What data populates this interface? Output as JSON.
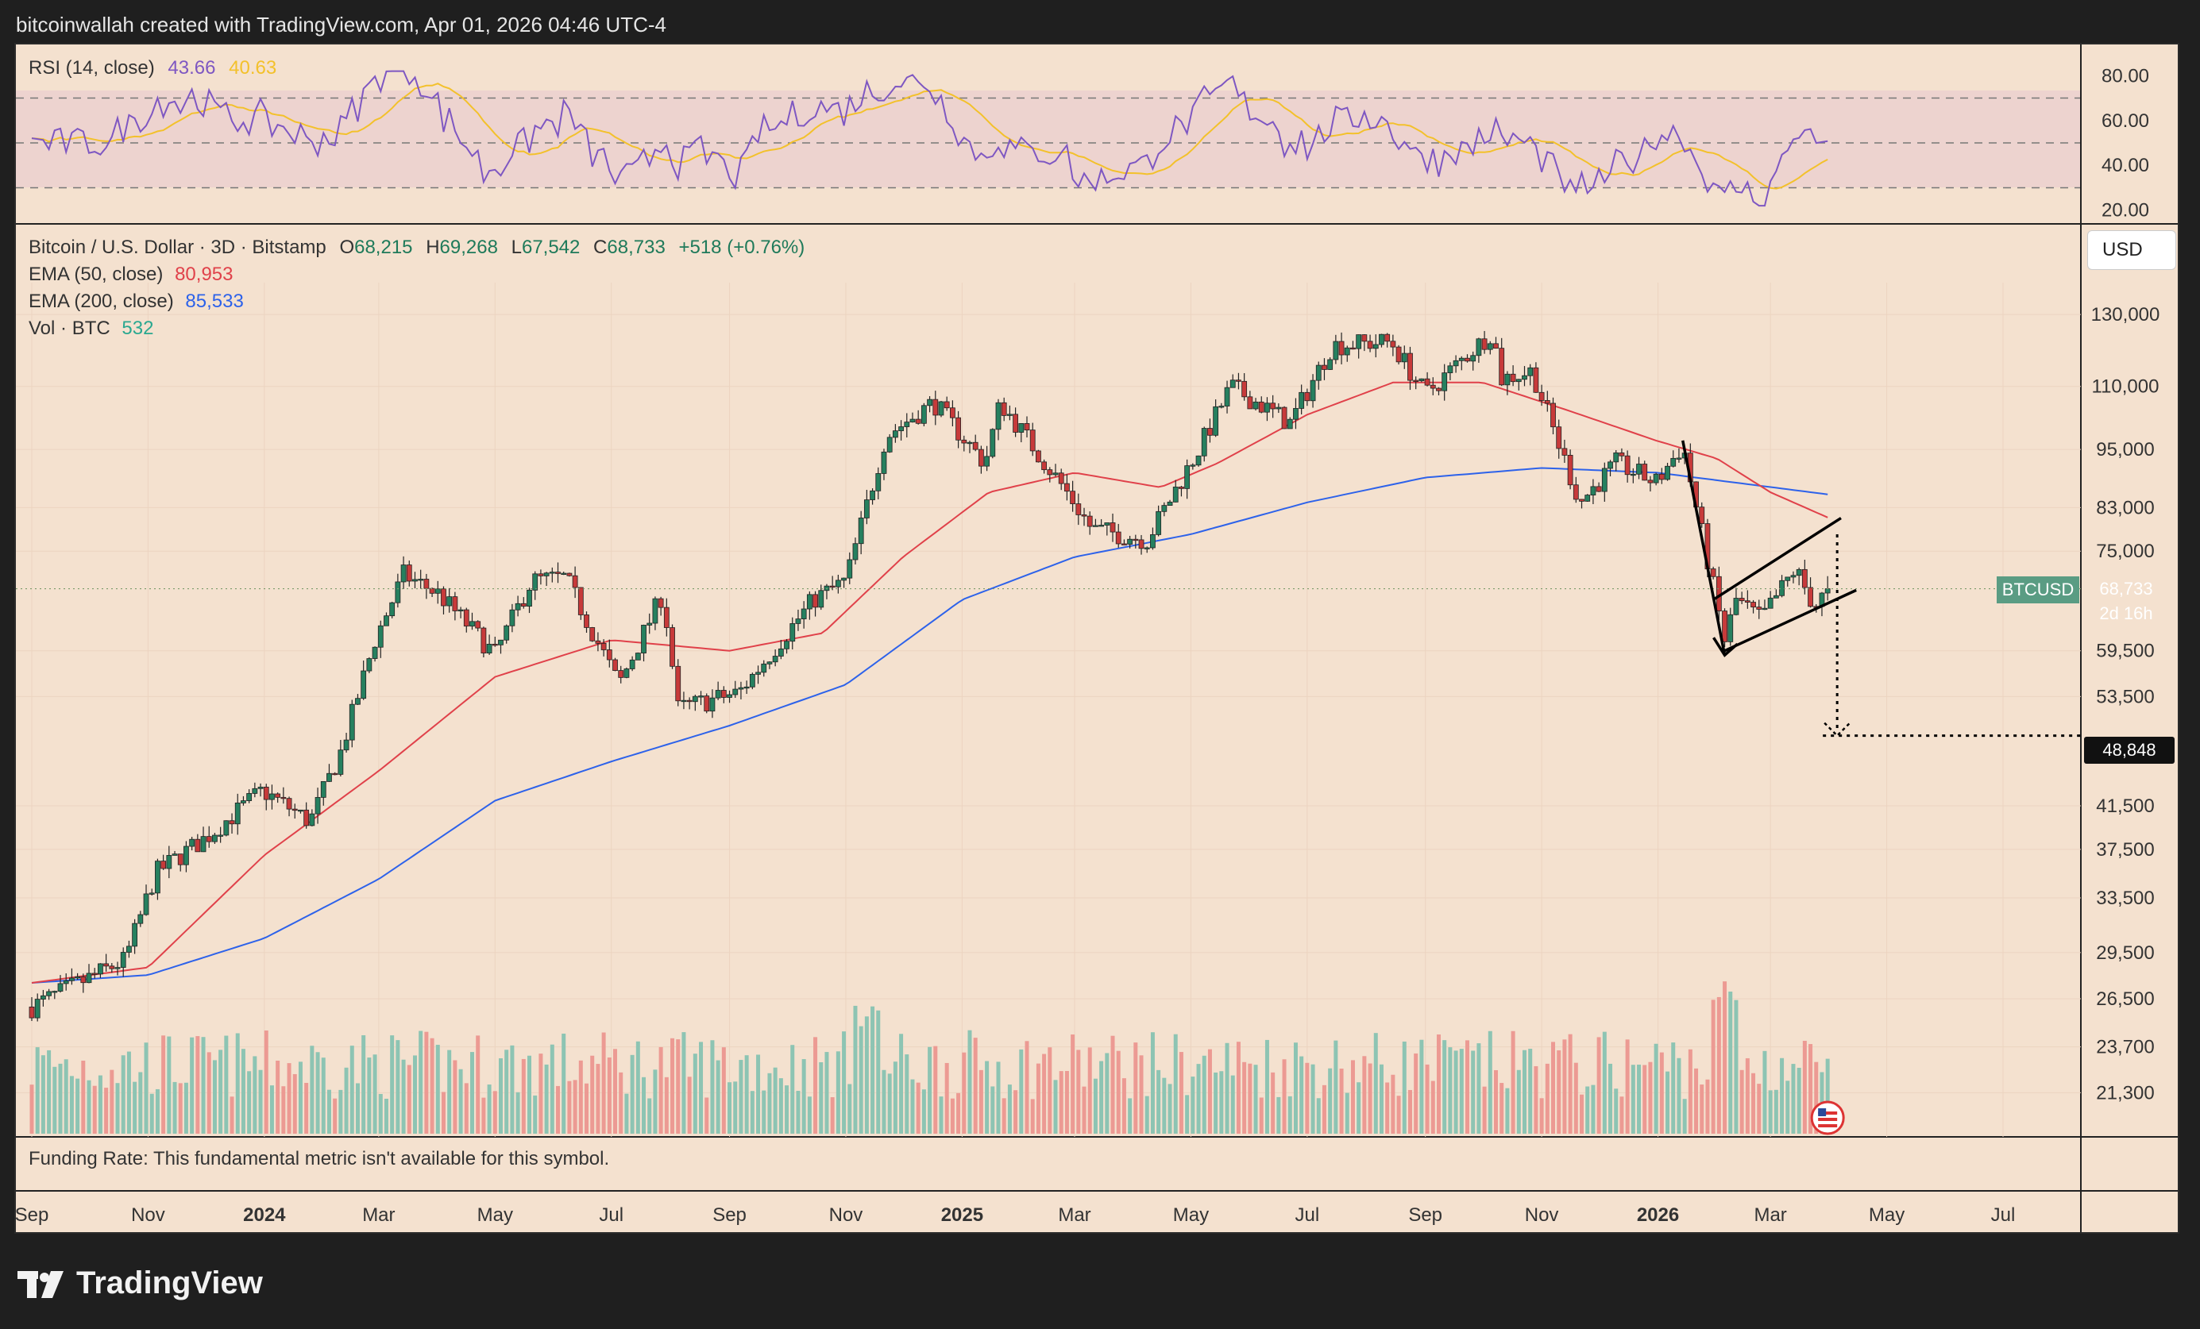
{
  "header": {
    "caption": "bitcoinwallah created with TradingView.com, Apr 01, 2026 04:46 UTC-4"
  },
  "rsi": {
    "label": "RSI (14, close)",
    "value": "43.66",
    "ma": "40.63",
    "ticks": [
      "80.00",
      "60.00",
      "40.00",
      "20.00"
    ],
    "colors": {
      "rsi": "#7e57c2",
      "ma": "#f3c12b",
      "band": "#e7c9cf"
    }
  },
  "legend": {
    "symbol": "Bitcoin / U.S. Dollar · 3D · Bitstamp",
    "o_label": "O",
    "o": "68,215",
    "h_label": "H",
    "h": "69,268",
    "l_label": "L",
    "l": "67,542",
    "c_label": "C",
    "c": "68,733",
    "change": "+518 (+0.76%)",
    "ema50_label": "EMA (50, close)",
    "ema50": "80,953",
    "ema200_label": "EMA (200, close)",
    "ema200": "85,533",
    "vol_label": "Vol · BTC",
    "vol": "532"
  },
  "currency": "USD",
  "price_tag": {
    "symbol": "BTCUSD",
    "value": "68,733",
    "countdown": "2d 16h"
  },
  "target_tag": "48,848",
  "funding": "Funding Rate: This fundamental metric isn't available for this symbol.",
  "brand": "TradingView",
  "chart_data": {
    "type": "candlestick",
    "price_axis_ticks": [
      130000,
      110000,
      95000,
      83000,
      75000,
      59500,
      53500,
      41500,
      37500,
      33500,
      29500,
      26500,
      23700,
      21300
    ],
    "time_axis_labels": [
      "Sep",
      "Nov",
      "2024",
      "Mar",
      "May",
      "Jul",
      "Sep",
      "Nov",
      "2025",
      "Mar",
      "May",
      "Jul",
      "Sep",
      "Nov",
      "2026",
      "Mar",
      "May",
      "Jul"
    ],
    "scale": "log",
    "close_anchors": [
      [
        "2023-09-01",
        26000
      ],
      [
        "2023-10-20",
        29000
      ],
      [
        "2023-11-05",
        35500
      ],
      [
        "2023-12-01",
        38500
      ],
      [
        "2023-12-31",
        43000
      ],
      [
        "2024-01-25",
        40000
      ],
      [
        "2024-02-10",
        47000
      ],
      [
        "2024-02-28",
        61000
      ],
      [
        "2024-03-14",
        71000
      ],
      [
        "2024-04-01",
        68000
      ],
      [
        "2024-05-01",
        59000
      ],
      [
        "2024-05-20",
        70000
      ],
      [
        "2024-06-07",
        70500
      ],
      [
        "2024-07-05",
        55000
      ],
      [
        "2024-07-28",
        68000
      ],
      [
        "2024-08-05",
        52000
      ],
      [
        "2024-09-06",
        54000
      ],
      [
        "2024-10-15",
        67000
      ],
      [
        "2024-11-01",
        70000
      ],
      [
        "2024-11-22",
        98000
      ],
      [
        "2024-12-17",
        106000
      ],
      [
        "2025-01-13",
        92000
      ],
      [
        "2025-01-21",
        106000
      ],
      [
        "2025-02-25",
        86000
      ],
      [
        "2025-03-10",
        79000
      ],
      [
        "2025-04-08",
        77000
      ],
      [
        "2025-05-05",
        95000
      ],
      [
        "2025-05-22",
        110000
      ],
      [
        "2025-06-22",
        101000
      ],
      [
        "2025-07-14",
        121000
      ],
      [
        "2025-08-14",
        122000
      ],
      [
        "2025-09-01",
        108000
      ],
      [
        "2025-10-06",
        125000
      ],
      [
        "2025-10-11",
        112000
      ],
      [
        "2025-10-27",
        114000
      ],
      [
        "2025-11-21",
        84000
      ],
      [
        "2025-12-10",
        92000
      ],
      [
        "2025-12-31",
        88000
      ],
      [
        "2026-01-14",
        96000
      ],
      [
        "2026-02-05",
        61000
      ],
      [
        "2026-02-11",
        67000
      ],
      [
        "2026-02-24",
        64000
      ],
      [
        "2026-03-14",
        72000
      ],
      [
        "2026-03-24",
        66000
      ],
      [
        "2026-04-01",
        68733
      ]
    ],
    "ema50_anchors": [
      [
        "2023-09-01",
        27500
      ],
      [
        "2023-11-01",
        28500
      ],
      [
        "2024-01-01",
        37000
      ],
      [
        "2024-03-01",
        45000
      ],
      [
        "2024-05-01",
        56000
      ],
      [
        "2024-07-01",
        61000
      ],
      [
        "2024-09-01",
        59500
      ],
      [
        "2024-10-20",
        62000
      ],
      [
        "2024-12-01",
        74000
      ],
      [
        "2025-01-15",
        86000
      ],
      [
        "2025-03-01",
        90000
      ],
      [
        "2025-04-15",
        87000
      ],
      [
        "2025-05-15",
        92000
      ],
      [
        "2025-07-01",
        103000
      ],
      [
        "2025-08-15",
        111000
      ],
      [
        "2025-10-01",
        111000
      ],
      [
        "2025-11-15",
        104000
      ],
      [
        "2025-12-31",
        97000
      ],
      [
        "2026-02-01",
        93000
      ],
      [
        "2026-03-01",
        86000
      ],
      [
        "2026-04-01",
        80953
      ]
    ],
    "ema200_anchors": [
      [
        "2023-09-01",
        27500
      ],
      [
        "2023-11-01",
        28000
      ],
      [
        "2024-01-01",
        30500
      ],
      [
        "2024-03-01",
        35000
      ],
      [
        "2024-05-01",
        42000
      ],
      [
        "2024-07-01",
        46000
      ],
      [
        "2024-09-01",
        50000
      ],
      [
        "2024-11-01",
        55000
      ],
      [
        "2025-01-01",
        67000
      ],
      [
        "2025-03-01",
        74000
      ],
      [
        "2025-05-01",
        78000
      ],
      [
        "2025-07-01",
        84000
      ],
      [
        "2025-09-01",
        89000
      ],
      [
        "2025-11-01",
        91000
      ],
      [
        "2026-01-01",
        90000
      ],
      [
        "2026-04-01",
        85533
      ]
    ],
    "annotations": {
      "flag_pole": [
        [
          "2026-01-14",
          97000
        ],
        [
          "2026-02-05",
          60000
        ]
      ],
      "channel_upper": [
        [
          "2026-01-30",
          67000
        ],
        [
          "2026-04-07",
          81000
        ]
      ],
      "channel_lower": [
        [
          "2026-02-05",
          59500
        ],
        [
          "2026-04-15",
          68500
        ]
      ],
      "target_path": [
        [
          "2026-04-05",
          78000
        ],
        [
          "2026-04-05",
          48848
        ]
      ],
      "target_level": 48848
    }
  }
}
